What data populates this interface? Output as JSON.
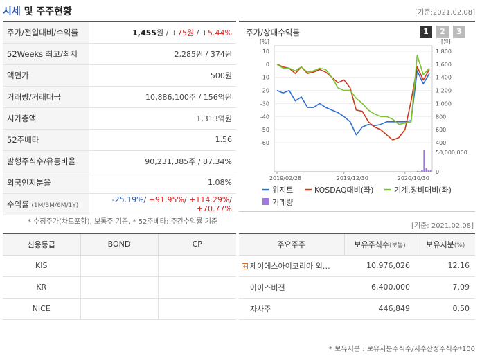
{
  "header": {
    "title_accent": "시세",
    "title_rest": " 및 주주현황",
    "basis": "[기준:2021.02.08]"
  },
  "summary": {
    "price_label": "주가/전일대비/수익률",
    "price": "1,455",
    "price_unit": "원",
    "change": "+75",
    "change_unit": "원",
    "change_pct": "+5.44%",
    "range_label": "52Weeks 최고/최저",
    "range_value": "2,285원 / 374원",
    "par_label": "액면가",
    "par_value": "500원",
    "volume_label": "거래량/거래대금",
    "volume_value": "10,886,100주 / 156억원",
    "mktcap_label": "시가총액",
    "mktcap_value": "1,313억원",
    "beta_label": "52주베타",
    "beta_value": "1.56",
    "shares_label": "발행주식수/유동비율",
    "shares_value": "90,231,385주 / 87.34%",
    "foreign_label": "외국인지분율",
    "foreign_value": "1.08%",
    "returns_label": "수익률",
    "returns_period": "(1M/3M/6M/1Y)",
    "returns_1m": "-25.19%",
    "returns_3m": "+91.95%",
    "returns_6m": "+114.29%",
    "returns_1y": "+70.77%"
  },
  "footnote1": "* 수정주가(차트포함), 보통주 기준, * 52주베타: 주간수익률 기준",
  "chart_panel": {
    "title": "주가/상대수익률",
    "buttons": [
      "1",
      "2",
      "3"
    ],
    "active_button": "1"
  },
  "chart_data": {
    "type": "line",
    "title": "주가/상대수익률",
    "left_axis_unit": "[%]",
    "right_axis_unit": "[원]",
    "left_ylim": [
      -60,
      10
    ],
    "left_ticks": [
      "10",
      "0",
      "-10",
      "-20",
      "-30",
      "-40",
      "-50",
      "-60"
    ],
    "right_ylim": [
      400,
      1800
    ],
    "right_ticks": [
      "1,800",
      "1,600",
      "1,400",
      "1,200",
      "1,000",
      "800",
      "600",
      "400"
    ],
    "volume_tick_labels": [
      "50,000,000",
      "0"
    ],
    "volume_max": 50000000,
    "x_labels": [
      "2019/02/28",
      "2019/12/30",
      "2020/10/30"
    ],
    "x_label_index": [
      0,
      11,
      21
    ],
    "series": [
      {
        "name": "위지트",
        "color": "#2d6fd0",
        "values": [
          -20,
          -22,
          -20,
          -28,
          -25,
          -33,
          -33,
          -30,
          -33,
          -35,
          -37,
          -40,
          -44,
          -54,
          -48,
          -46,
          -47,
          -46,
          -44,
          -44,
          -44,
          -44,
          -43,
          -5,
          -15,
          -7
        ]
      },
      {
        "name": "KOSDAQ대비(좌)",
        "color": "#cc3a1a",
        "values": [
          0,
          -2,
          -3,
          -7,
          -2,
          -7,
          -6,
          -4,
          -6,
          -10,
          -14,
          -12,
          -18,
          -35,
          -36,
          -44,
          -48,
          -50,
          -54,
          -58,
          -56,
          -50,
          -28,
          -2,
          -12,
          -4
        ]
      },
      {
        "name": "기계.장비대비(좌)",
        "color": "#7cc12e",
        "values": [
          0,
          -3,
          -3,
          -5,
          -2,
          -6,
          -5,
          -3,
          -4,
          -10,
          -18,
          -20,
          -20,
          -26,
          -30,
          -35,
          -38,
          -40,
          -40,
          -42,
          -46,
          -45,
          -44,
          7,
          -8,
          -3
        ]
      }
    ],
    "volume_series": {
      "name": "거래량",
      "color": "#a07ad8",
      "values": [
        0,
        0,
        0,
        0,
        0,
        0,
        0,
        0,
        0,
        0,
        0,
        0,
        0,
        0,
        0,
        0,
        0,
        0,
        0,
        0,
        0,
        0,
        0,
        0,
        0,
        0,
        0,
        0,
        0,
        0,
        0,
        0,
        0,
        0,
        0,
        0,
        0,
        0,
        0,
        0,
        0,
        0,
        0,
        0,
        0,
        0,
        0,
        0,
        0,
        0,
        0,
        0,
        0,
        0,
        0,
        0,
        0,
        0,
        0,
        0,
        0,
        0,
        0,
        0,
        0,
        2000000,
        1200000,
        4000000,
        54000000,
        9000000,
        3000000,
        5000000
      ]
    }
  },
  "credit": {
    "headers": [
      "신용등급",
      "BOND",
      "CP"
    ],
    "rows": [
      [
        "KIS",
        "",
        ""
      ],
      [
        "KR",
        "",
        ""
      ],
      [
        "NICE",
        "",
        ""
      ]
    ]
  },
  "basis2": "[기준: 2021.02.08]",
  "shareholders": {
    "headers": [
      "주요주주",
      "보유주식수",
      "(보통)",
      "보유지분",
      "(%)"
    ],
    "rows": [
      {
        "name": "제이에스아이코리아 외…",
        "shares": "10,976,026",
        "pct": "12.16",
        "expandable": true
      },
      {
        "name": "아이즈비전",
        "shares": "6,400,000",
        "pct": "7.09",
        "expandable": false
      },
      {
        "name": "자사주",
        "shares": "446,849",
        "pct": "0.50",
        "expandable": false
      }
    ]
  },
  "footnote2": "* 보유지분 : 보유지분주식수/지수산정주식수*100"
}
